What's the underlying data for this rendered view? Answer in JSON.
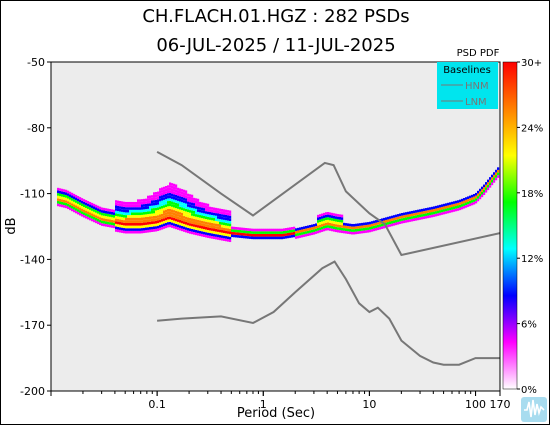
{
  "title_line1": "CH.FLACH.01.HGZ : 282 PSDs",
  "title_line2": "06-JUL-2025 / 11-JUL-2025",
  "colorbar_title": "PSD PDF",
  "legend": {
    "title": "Baselines",
    "items": [
      "HNM",
      "LNM"
    ],
    "background": "#00e5ee"
  },
  "chart_data": {
    "type": "heatmap",
    "title": "CH.FLACH.01.HGZ : 282 PSDs",
    "subtitle": "06-JUL-2025 / 11-JUL-2025",
    "xlabel": "Period (Sec)",
    "ylabel": "dB",
    "x_scale": "log",
    "xlim": [
      0.01,
      170
    ],
    "ylim": [
      -200,
      -50
    ],
    "x_ticks": [
      {
        "value": 0.1,
        "label": "0.1"
      },
      {
        "value": 1,
        "label": "1"
      },
      {
        "value": 10,
        "label": "10"
      },
      {
        "value": 100,
        "label": "100"
      },
      {
        "value": 170,
        "label": "170"
      }
    ],
    "y_ticks": [
      -50,
      -80,
      -110,
      -140,
      -170,
      -200
    ],
    "colorbar": {
      "label": "PSD PDF",
      "ticks": [
        "0%",
        "6%",
        "12%",
        "18%",
        "24%",
        "30+"
      ],
      "colors": [
        "#ffffff",
        "#ff00ff",
        "#0000ff",
        "#00ffff",
        "#00ff00",
        "#ffff00",
        "#ff8000",
        "#ff0000"
      ]
    },
    "background_color": "#ececec",
    "series": [
      {
        "name": "HNM",
        "color": "#777777",
        "points": [
          [
            0.1,
            -91
          ],
          [
            0.17,
            -97
          ],
          [
            0.4,
            -110
          ],
          [
            0.8,
            -120
          ],
          [
            3.8,
            -96
          ],
          [
            4.6,
            -97
          ],
          [
            6,
            -109
          ],
          [
            10,
            -119
          ],
          [
            14,
            -124
          ],
          [
            20,
            -138
          ],
          [
            170,
            -128
          ]
        ]
      },
      {
        "name": "LNM",
        "color": "#777777",
        "points": [
          [
            0.1,
            -168
          ],
          [
            0.17,
            -167
          ],
          [
            0.4,
            -166
          ],
          [
            0.8,
            -169
          ],
          [
            1.25,
            -164
          ],
          [
            2,
            -155
          ],
          [
            3.6,
            -144
          ],
          [
            4.7,
            -141
          ],
          [
            6,
            -149
          ],
          [
            8,
            -160
          ],
          [
            10,
            -164
          ],
          [
            12,
            -162
          ],
          [
            15.4,
            -167
          ],
          [
            20,
            -177
          ],
          [
            30,
            -184
          ],
          [
            40,
            -187
          ],
          [
            50,
            -188
          ],
          [
            70,
            -188
          ],
          [
            100,
            -185
          ],
          [
            170,
            -185
          ]
        ]
      }
    ],
    "pdf_mode": [
      [
        0.0115,
        -113
      ],
      [
        0.014,
        -114
      ],
      [
        0.02,
        -118
      ],
      [
        0.03,
        -122
      ],
      [
        0.05,
        -124
      ],
      [
        0.07,
        -124
      ],
      [
        0.1,
        -123
      ],
      [
        0.13,
        -121
      ],
      [
        0.2,
        -124
      ],
      [
        0.3,
        -126
      ],
      [
        0.5,
        -128
      ],
      [
        0.8,
        -129
      ],
      [
        1,
        -129
      ],
      [
        1.5,
        -129
      ],
      [
        2,
        -128
      ],
      [
        3,
        -126
      ],
      [
        4,
        -124
      ],
      [
        5,
        -125
      ],
      [
        7,
        -126
      ],
      [
        10,
        -125
      ],
      [
        20,
        -121
      ],
      [
        40,
        -118
      ],
      [
        70,
        -115
      ],
      [
        100,
        -112
      ],
      [
        120,
        -108
      ],
      [
        140,
        -104
      ],
      [
        170,
        -99
      ]
    ]
  }
}
